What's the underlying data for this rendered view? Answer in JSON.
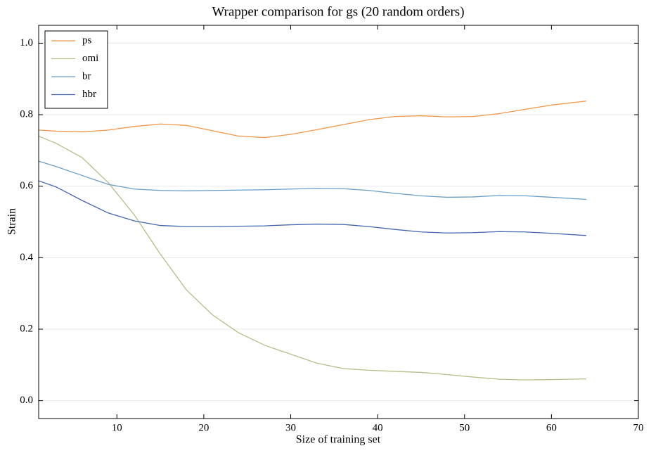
{
  "chart_data": {
    "type": "line",
    "title": "Wrapper comparison for gs (20 random orders)",
    "xlabel": "Size of training set",
    "ylabel": "Strain",
    "x": [
      1,
      3,
      6,
      9,
      12,
      15,
      18,
      21,
      24,
      27,
      30,
      33,
      36,
      39,
      42,
      45,
      48,
      51,
      54,
      57,
      60,
      64
    ],
    "series": [
      {
        "name": "ps",
        "color": "#f0974a",
        "values": [
          0.757,
          0.754,
          0.752,
          0.757,
          0.767,
          0.774,
          0.77,
          0.755,
          0.74,
          0.736,
          0.745,
          0.758,
          0.772,
          0.786,
          0.795,
          0.797,
          0.794,
          0.795,
          0.803,
          0.815,
          0.827,
          0.838
        ]
      },
      {
        "name": "omi",
        "color": "#b3bf88",
        "values": [
          0.74,
          0.72,
          0.68,
          0.61,
          0.52,
          0.41,
          0.31,
          0.24,
          0.19,
          0.155,
          0.13,
          0.105,
          0.09,
          0.085,
          0.082,
          0.079,
          0.073,
          0.066,
          0.06,
          0.058,
          0.059,
          0.061
        ]
      },
      {
        "name": "br",
        "color": "#6a9ec6",
        "values": [
          0.67,
          0.655,
          0.63,
          0.605,
          0.592,
          0.588,
          0.587,
          0.588,
          0.589,
          0.59,
          0.592,
          0.594,
          0.593,
          0.588,
          0.58,
          0.573,
          0.569,
          0.57,
          0.574,
          0.573,
          0.569,
          0.563
        ]
      },
      {
        "name": "hbr",
        "color": "#4466b0",
        "values": [
          0.615,
          0.598,
          0.56,
          0.525,
          0.503,
          0.49,
          0.487,
          0.487,
          0.488,
          0.489,
          0.492,
          0.494,
          0.493,
          0.487,
          0.479,
          0.472,
          0.469,
          0.47,
          0.473,
          0.472,
          0.468,
          0.462
        ]
      }
    ],
    "xlim": [
      1,
      70
    ],
    "xticks": [
      10,
      20,
      30,
      40,
      50,
      60,
      70
    ],
    "ylim": [
      -0.05,
      1.05
    ],
    "yticks": [
      {
        "value": 0,
        "label": "0.0"
      },
      {
        "value": 0.2,
        "label": "0.2"
      },
      {
        "value": 0.4,
        "label": "0.4"
      },
      {
        "value": 0.6,
        "label": "0.6"
      },
      {
        "value": 0.8,
        "label": "0.8"
      },
      {
        "value": 1,
        "label": "1.0"
      }
    ],
    "grid": true,
    "legend": "upper-left"
  }
}
